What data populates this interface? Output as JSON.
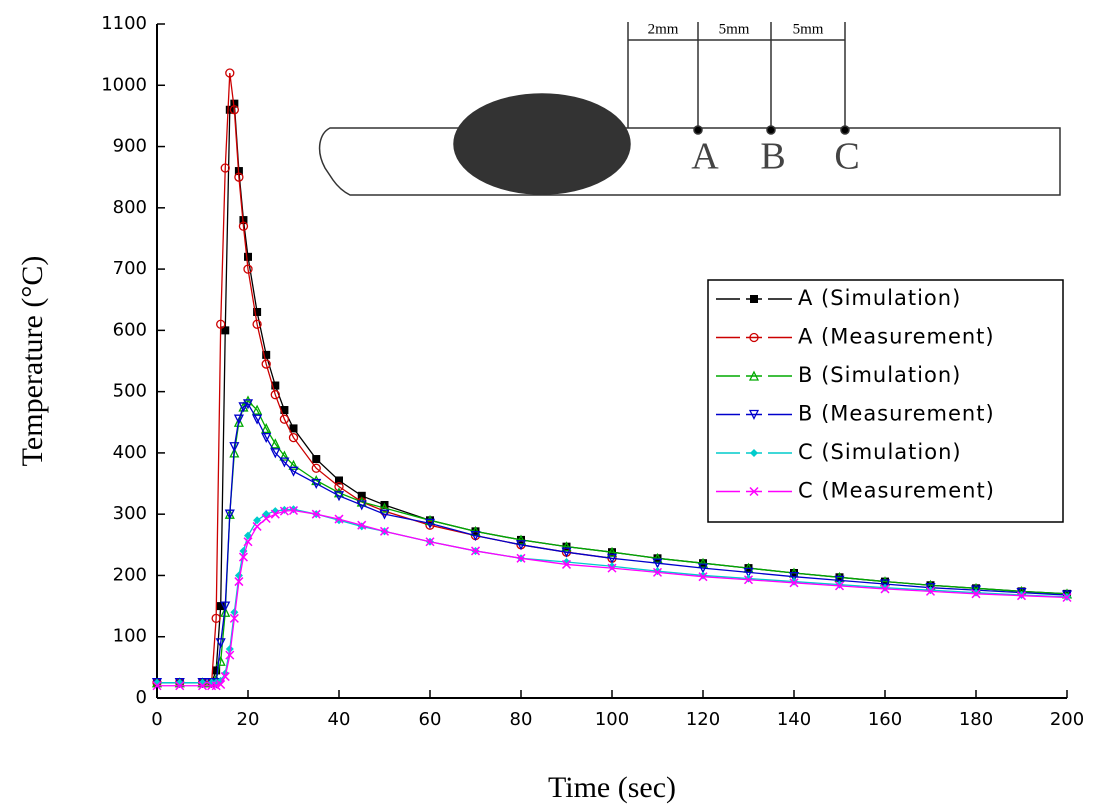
{
  "chart_data": {
    "type": "line",
    "x_label": "Time (sec)",
    "y_label": "Temperature (°C)",
    "x": [
      0,
      5,
      10,
      12,
      13,
      14,
      15,
      16,
      17,
      18,
      19,
      20,
      22,
      24,
      26,
      28,
      30,
      35,
      40,
      45,
      50,
      60,
      70,
      80,
      90,
      100,
      110,
      120,
      130,
      140,
      150,
      160,
      170,
      180,
      190,
      200
    ],
    "series": [
      {
        "name": "A (Simulation)",
        "color": "#000000",
        "marker": "square-filled",
        "values": [
          25,
          25,
          25,
          25,
          45,
          150,
          600,
          960,
          970,
          860,
          780,
          720,
          630,
          560,
          510,
          470,
          440,
          390,
          355,
          330,
          315,
          290,
          272,
          258,
          247,
          238,
          228,
          220,
          212,
          204,
          197,
          190,
          184,
          179,
          174,
          170
        ]
      },
      {
        "name": "A (Measurement)",
        "color": "#cc0000",
        "marker": "circle-open",
        "values": [
          25,
          25,
          25,
          25,
          130,
          610,
          865,
          1020,
          960,
          850,
          770,
          700,
          610,
          545,
          495,
          455,
          425,
          375,
          345,
          320,
          305,
          282,
          265,
          250,
          238,
          228,
          null,
          null,
          null,
          null,
          null,
          null,
          null,
          null,
          null,
          null
        ]
      },
      {
        "name": "B (Simulation)",
        "color": "#00aa00",
        "marker": "triangle-up",
        "values": [
          25,
          25,
          25,
          25,
          30,
          60,
          140,
          300,
          400,
          450,
          475,
          485,
          470,
          440,
          415,
          395,
          380,
          355,
          335,
          320,
          310,
          290,
          272,
          258,
          247,
          238,
          228,
          220,
          212,
          204,
          197,
          190,
          184,
          179,
          174,
          170
        ]
      },
      {
        "name": "B (Measurement)",
        "color": "#0000cc",
        "marker": "triangle-down",
        "values": [
          25,
          25,
          25,
          25,
          25,
          90,
          150,
          300,
          410,
          455,
          475,
          480,
          455,
          425,
          400,
          385,
          370,
          350,
          330,
          315,
          300,
          285,
          265,
          250,
          238,
          228,
          220,
          212,
          205,
          198,
          192,
          186,
          180,
          176,
          172,
          168
        ]
      },
      {
        "name": "C (Simulation)",
        "color": "#00cccc",
        "marker": "diamond",
        "values": [
          25,
          25,
          25,
          25,
          25,
          28,
          40,
          80,
          140,
          200,
          240,
          265,
          290,
          300,
          305,
          307,
          308,
          300,
          290,
          280,
          272,
          255,
          240,
          228,
          222,
          215,
          207,
          200,
          195,
          190,
          185,
          180,
          176,
          172,
          168,
          165
        ]
      },
      {
        "name": "C (Measurement)",
        "color": "#ff00ff",
        "marker": "x",
        "values": [
          20,
          20,
          20,
          20,
          20,
          22,
          35,
          70,
          130,
          190,
          230,
          255,
          280,
          293,
          300,
          305,
          306,
          300,
          292,
          282,
          272,
          255,
          240,
          228,
          218,
          212,
          205,
          198,
          193,
          188,
          183,
          178,
          174,
          170,
          167,
          164
        ]
      }
    ],
    "xlim": [
      0,
      200
    ],
    "xticks": [
      0,
      20,
      40,
      60,
      80,
      100,
      120,
      140,
      160,
      180,
      200
    ],
    "ylim": [
      0,
      1100
    ],
    "yticks": [
      0,
      100,
      200,
      300,
      400,
      500,
      600,
      700,
      800,
      900,
      1000,
      1100
    ],
    "legend": "right",
    "inset": {
      "dimensions": [
        "2mm",
        "5mm",
        "5mm"
      ],
      "points": [
        "A",
        "B",
        "C"
      ]
    }
  }
}
